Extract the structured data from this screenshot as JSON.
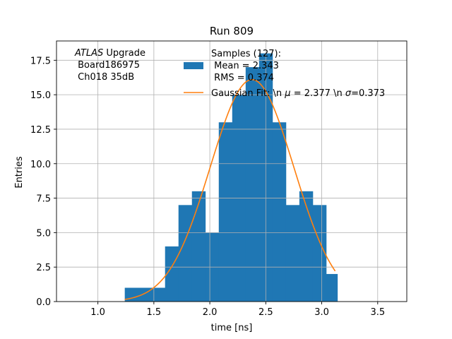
{
  "chart_data": {
    "type": "bar",
    "title": "Run 809",
    "xlabel": "time [ns]",
    "ylabel": "Entries",
    "xlim": [
      0.63,
      3.76
    ],
    "ylim": [
      0.0,
      18.9
    ],
    "xticks": [
      "1.0",
      "1.5",
      "2.0",
      "2.5",
      "3.0",
      "3.5"
    ],
    "xtick_values": [
      1.0,
      1.5,
      2.0,
      2.5,
      3.0,
      3.5
    ],
    "yticks": [
      "0.0",
      "2.5",
      "5.0",
      "7.5",
      "10.0",
      "12.5",
      "15.0",
      "17.5"
    ],
    "ytick_values": [
      0.0,
      2.5,
      5.0,
      7.5,
      10.0,
      12.5,
      15.0,
      17.5
    ],
    "grid": true,
    "legend_placement": "top-right",
    "annotation": {
      "lines": [
        "ATLAS Upgrade",
        " Board186975",
        " Ch018 35dB"
      ],
      "italic_word": "ATLAS",
      "rest_first_line": " Upgrade"
    },
    "histogram": {
      "name_lines": [
        "Samples (127):",
        " Mean = 2.343",
        " RMS = 0.374"
      ],
      "color": "#1f77b4",
      "bin_edges": [
        1.24,
        1.36,
        1.48,
        1.6,
        1.72,
        1.84,
        1.96,
        2.08,
        2.2,
        2.32,
        2.44,
        2.56,
        2.68,
        2.8,
        2.92,
        3.04,
        3.14
      ],
      "counts": [
        1,
        1,
        1,
        4,
        7,
        8,
        5,
        13,
        15,
        17,
        18,
        13,
        7,
        8,
        7,
        2
      ]
    },
    "fit": {
      "name": "Gaussian Fit: \\n $\\mu$ = 2.377 \\n $\\sigma$=0.373",
      "label_parts": [
        "Gaussian Fit: \\n ",
        "μ",
        " = 2.377 \\n ",
        "σ",
        "=0.373"
      ],
      "color": "#ff7f0e",
      "mu": 2.377,
      "sigma": 0.373,
      "amplitude": 16.1,
      "x_range": [
        1.24,
        3.12
      ]
    }
  }
}
